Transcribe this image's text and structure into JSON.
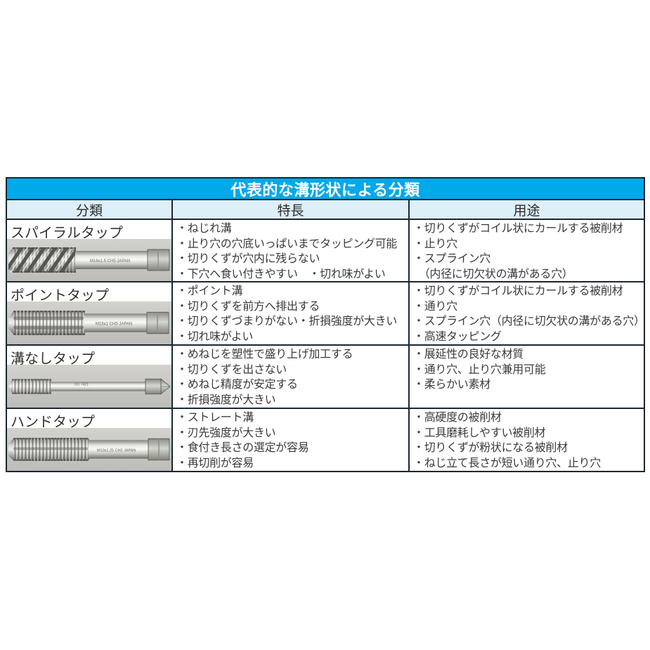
{
  "colors": {
    "title_bg": "#00a9e8",
    "title_text": "#ffffff",
    "header_bg": "#ddeff8",
    "border_dark": "#1a2633",
    "body_text": "#3b3b3b",
    "photo_bg": "#c8c7c3"
  },
  "table": {
    "title": "代表的な溝形状による分類",
    "columns": [
      "分類",
      "特長",
      "用途"
    ],
    "rows": [
      {
        "classification": "スパイラルタップ",
        "image": "spiral-tap-photo",
        "engraving": "M16x1.5 CH5 JAPAN",
        "features": [
          "・ねじれ溝",
          "・止り穴の穴底いっぱいまでタッピング可能",
          "・切りくずが穴内に残らない",
          "・下穴へ食い付きやすい　・切れ味がよい"
        ],
        "applications": [
          "・切りくずがコイル状にカールする被削材",
          "・止り穴",
          "・スプライン穴",
          "　（内径に切欠状の溝がある穴）"
        ]
      },
      {
        "classification": "ポイントタップ",
        "image": "point-tap-photo",
        "engraving": "M16x1 CH5 JAPAN",
        "features": [
          "・ポイント溝",
          "・切りくずを前方へ排出する",
          "・切りくずづまりがない・折損強度が大きい",
          "・切れ味がよい"
        ],
        "applications": [
          "・切りくずがコイル状にカールする被削材",
          "・通り穴",
          "・スプライン穴（内径に切欠状の溝がある穴）",
          "・高速タッピング"
        ]
      },
      {
        "classification": "溝なしタップ",
        "image": "fluteless-tap-photo",
        "engraving": "OC 7421",
        "features": [
          "・めねじを塑性で盛り上げ加工する",
          "・切りくずを出さない",
          "・めねじ精度が安定する",
          "・折損強度が大きい"
        ],
        "applications": [
          "・展延性の良好な材質",
          "・通り穴、止り穴兼用可能",
          "・柔らかい素材"
        ]
      },
      {
        "classification": "ハンドタップ",
        "image": "hand-tap-photo",
        "engraving": "M10x1.25 CH2 JAPAN",
        "features": [
          "・ストレート溝",
          "・刃先強度が大きい",
          "・食付き長さの選定が容易",
          "・再切削が容易"
        ],
        "applications": [
          "・高硬度の被削材",
          "・工具磨耗しやすい被削材",
          "・切りくずが粉状になる被削材",
          "・ねじ立て長さが短い通り穴、止り穴"
        ]
      }
    ]
  }
}
